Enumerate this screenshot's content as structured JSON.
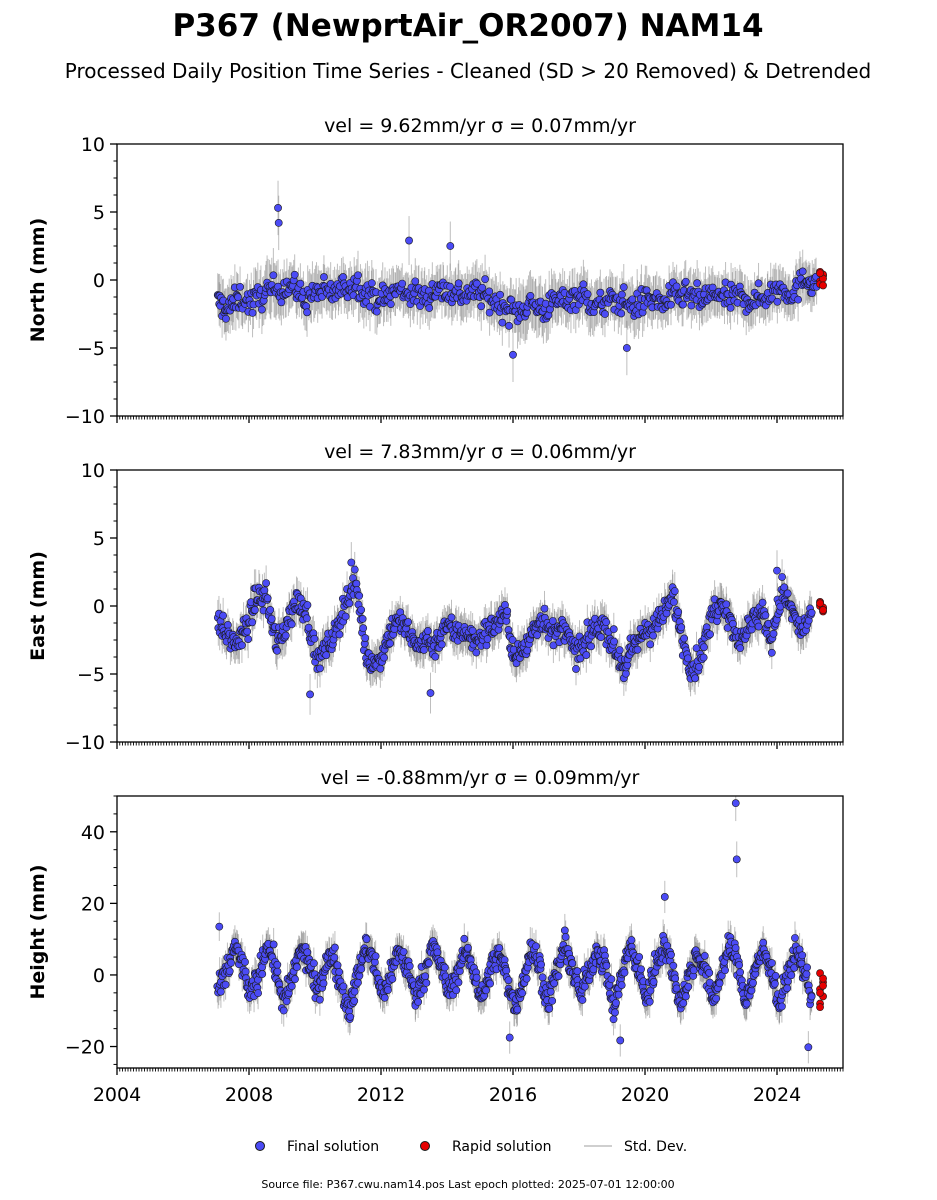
{
  "figure": {
    "title": "P367 (NewprtAir_OR2007) NAM14",
    "subtitle": "Processed Daily Position Time Series - Cleaned (SD > 20 Removed) & Detrended",
    "footer": "Source file: P367.cwu.nam14.pos  Last epoch plotted: 2025-07-01 12:00:00"
  },
  "legend": {
    "final_label": "Final solution",
    "rapid_label": "Rapid solution",
    "std_label": "Std. Dev."
  },
  "colors": {
    "final": "#4b4bf5",
    "rapid": "#e60000",
    "std": "#808080",
    "marker_edge": "#1a1a1a"
  },
  "chart_data": [
    {
      "type": "scatter",
      "title": "vel = 9.62mm/yr   σ = 0.07mm/yr",
      "ylabel": "North (mm)",
      "xlim": [
        2004.0,
        2026.0
      ],
      "ylim": [
        -10,
        10
      ],
      "yticks": [
        -10,
        -5,
        0,
        5,
        10
      ],
      "ytick_labels": [
        "−10",
        "−5",
        "0",
        "5",
        "10"
      ],
      "series": [
        {
          "name": "Final solution",
          "x": [
            2007.05,
            2007.35,
            2007.7,
            2008.1,
            2008.5,
            2008.9,
            2009.3,
            2009.7,
            2010.1,
            2010.5,
            2010.9,
            2011.3,
            2011.7,
            2012.1,
            2012.5,
            2012.9,
            2013.3,
            2013.7,
            2014.1,
            2014.5,
            2014.9,
            2015.3,
            2015.7,
            2016.1,
            2016.5,
            2016.9,
            2017.3,
            2017.7,
            2018.1,
            2018.5,
            2018.9,
            2019.3,
            2019.7,
            2020.1,
            2020.5,
            2020.9,
            2021.3,
            2021.7,
            2022.1,
            2022.5,
            2022.9,
            2023.3,
            2023.7,
            2024.1,
            2024.5,
            2024.9,
            2025.2
          ],
          "y": [
            -1.6,
            -2.2,
            -1.3,
            -1.7,
            -0.9,
            -0.6,
            -0.4,
            -1.5,
            -0.8,
            -1.0,
            -0.5,
            -0.3,
            -1.2,
            -1.4,
            -0.7,
            -1.0,
            -1.3,
            -0.6,
            -0.9,
            -1.1,
            -0.8,
            -1.4,
            -2.0,
            -2.4,
            -1.7,
            -2.2,
            -1.6,
            -1.3,
            -1.1,
            -2.0,
            -1.6,
            -1.5,
            -2.0,
            -1.3,
            -1.7,
            -1.2,
            -1.1,
            -1.5,
            -1.0,
            -1.4,
            -1.2,
            -1.6,
            -1.1,
            -0.6,
            -1.0,
            0.2,
            -0.5
          ],
          "std": [
            1.6,
            1.7,
            1.5,
            1.8,
            2.0,
            1.7,
            1.5,
            1.8,
            1.6,
            1.5,
            1.6,
            1.8,
            1.7,
            1.6,
            1.5,
            1.7,
            1.6,
            1.5,
            1.7,
            1.6,
            1.8,
            1.7,
            1.6,
            2.0,
            1.9,
            1.8,
            1.6,
            1.7,
            1.8,
            1.7,
            1.6,
            1.7,
            1.8,
            1.6,
            1.5,
            1.6,
            1.7,
            1.6,
            1.5,
            1.6,
            1.7,
            1.5,
            1.6,
            1.5,
            1.6,
            1.4,
            1.3
          ]
        },
        {
          "name": "Final solution",
          "x": [
            2008.88,
            2008.9,
            2012.85,
            2014.1,
            2016.0,
            2019.45
          ],
          "y": [
            5.3,
            4.2,
            2.9,
            2.5,
            -5.5,
            -5.0
          ],
          "std": [
            2.0,
            2.0,
            1.8,
            1.8,
            2.0,
            2.0
          ]
        },
        {
          "name": "Rapid solution",
          "x": [
            2025.25,
            2025.28,
            2025.3,
            2025.32,
            2025.34,
            2025.36,
            2025.38,
            2025.4
          ],
          "y": [
            0.6,
            0.3,
            -0.1,
            0.4,
            -0.3,
            0.1,
            0.5,
            -0.4
          ]
        }
      ]
    },
    {
      "type": "scatter",
      "title": "vel = 7.83mm/yr   σ = 0.06mm/yr",
      "ylabel": "East (mm)",
      "xlim": [
        2004.0,
        2026.0
      ],
      "ylim": [
        -10,
        10
      ],
      "yticks": [
        -10,
        -5,
        0,
        5,
        10
      ],
      "ytick_labels": [
        "−10",
        "−5",
        "0",
        "5",
        "10"
      ],
      "series": [
        {
          "name": "Final solution",
          "x": [
            2007.05,
            2007.35,
            2007.65,
            2007.95,
            2008.25,
            2008.55,
            2008.85,
            2009.15,
            2009.45,
            2009.75,
            2010.05,
            2010.35,
            2010.65,
            2010.95,
            2011.25,
            2011.55,
            2011.85,
            2012.15,
            2012.45,
            2012.75,
            2013.05,
            2013.35,
            2013.65,
            2013.95,
            2014.25,
            2014.55,
            2014.85,
            2015.15,
            2015.45,
            2015.75,
            2016.05,
            2016.35,
            2016.65,
            2016.95,
            2017.25,
            2017.55,
            2017.85,
            2018.15,
            2018.45,
            2018.75,
            2019.05,
            2019.35,
            2019.65,
            2019.95,
            2020.25,
            2020.55,
            2020.85,
            2021.15,
            2021.45,
            2021.75,
            2022.05,
            2022.35,
            2022.65,
            2022.95,
            2023.25,
            2023.55,
            2023.85,
            2024.15,
            2024.45,
            2024.75,
            2025.05
          ],
          "y": [
            -1.0,
            -2.3,
            -2.8,
            -1.5,
            0.8,
            0.5,
            -3.0,
            -1.2,
            0.3,
            -0.5,
            -4.0,
            -3.2,
            -1.8,
            0.5,
            1.8,
            -3.6,
            -4.4,
            -2.7,
            -1.0,
            -1.6,
            -3.0,
            -2.4,
            -2.9,
            -1.3,
            -2.0,
            -1.7,
            -2.8,
            -2.0,
            -1.4,
            -0.5,
            -3.8,
            -3.3,
            -1.5,
            -0.8,
            -2.3,
            -1.5,
            -3.5,
            -3.0,
            -1.8,
            -1.2,
            -3.0,
            -4.5,
            -3.2,
            -2.0,
            -1.5,
            -0.8,
            0.8,
            -2.5,
            -4.8,
            -3.2,
            -0.5,
            0.5,
            -1.5,
            -2.8,
            -0.8,
            -0.5,
            -2.6,
            1.2,
            -0.4,
            -2.0,
            -0.5
          ],
          "std": [
            1.3,
            1.2,
            1.3,
            1.4,
            1.3,
            1.2,
            1.4,
            1.3,
            1.2,
            1.3,
            1.4,
            1.3,
            1.2,
            1.3,
            1.4,
            1.3,
            1.4,
            1.3,
            1.2,
            1.3,
            1.4,
            1.3,
            1.2,
            1.3,
            1.4,
            1.3,
            1.2,
            1.3,
            1.4,
            1.3,
            1.4,
            1.3,
            1.2,
            1.3,
            1.4,
            1.3,
            1.2,
            1.3,
            1.4,
            1.3,
            1.2,
            1.3,
            1.4,
            1.3,
            1.2,
            1.3,
            1.4,
            1.3,
            1.2,
            1.3,
            1.4,
            1.3,
            1.2,
            1.3,
            1.4,
            1.3,
            1.2,
            1.3,
            1.4,
            1.3,
            1.2
          ]
        },
        {
          "name": "Final solution",
          "x": [
            2009.85,
            2011.1,
            2013.5,
            2024.0
          ],
          "y": [
            -6.5,
            3.2,
            -6.4,
            2.6
          ],
          "std": [
            1.5,
            1.5,
            1.5,
            1.5
          ]
        },
        {
          "name": "Rapid solution",
          "x": [
            2025.25,
            2025.28,
            2025.3,
            2025.32,
            2025.34,
            2025.36,
            2025.38,
            2025.4
          ],
          "y": [
            0.1,
            -0.2,
            0.3,
            -0.4,
            0.0,
            -0.1,
            0.2,
            -0.3
          ]
        }
      ]
    },
    {
      "type": "scatter",
      "title": "vel = -0.88mm/yr   σ = 0.09mm/yr",
      "ylabel": "Height (mm)",
      "xlim": [
        2004.0,
        2026.0
      ],
      "ylim": [
        -26,
        50
      ],
      "yticks": [
        -20,
        0,
        20,
        40
      ],
      "ytick_labels": [
        "−20",
        "0",
        "20",
        "40"
      ],
      "xticks": [
        2004,
        2008,
        2012,
        2016,
        2020,
        2024
      ],
      "xtick_labels": [
        "2004",
        "2008",
        "2012",
        "2016",
        "2020",
        "2024"
      ],
      "series": [
        {
          "name": "Final solution",
          "x": [
            2007.05,
            2007.3,
            2007.55,
            2007.8,
            2008.05,
            2008.3,
            2008.55,
            2008.8,
            2009.05,
            2009.3,
            2009.55,
            2009.8,
            2010.05,
            2010.3,
            2010.55,
            2010.8,
            2011.05,
            2011.3,
            2011.55,
            2011.8,
            2012.05,
            2012.3,
            2012.55,
            2012.8,
            2013.05,
            2013.3,
            2013.55,
            2013.8,
            2014.05,
            2014.3,
            2014.55,
            2014.8,
            2015.05,
            2015.3,
            2015.55,
            2015.8,
            2016.05,
            2016.3,
            2016.55,
            2016.8,
            2017.05,
            2017.3,
            2017.55,
            2017.8,
            2018.05,
            2018.3,
            2018.55,
            2018.8,
            2019.05,
            2019.3,
            2019.55,
            2019.8,
            2020.05,
            2020.3,
            2020.55,
            2020.8,
            2021.05,
            2021.3,
            2021.55,
            2021.8,
            2022.05,
            2022.3,
            2022.55,
            2022.8,
            2023.05,
            2023.3,
            2023.55,
            2023.8,
            2024.05,
            2024.3,
            2024.55,
            2024.8,
            2025.05
          ],
          "y": [
            -5,
            0,
            8,
            3,
            -6,
            0,
            9,
            2,
            -8,
            -2,
            7,
            4,
            -5,
            2,
            6,
            -3,
            -10,
            0,
            8,
            3,
            -6,
            1,
            7,
            2,
            -6,
            0,
            8,
            3,
            -5,
            0,
            7,
            2,
            -7,
            1,
            6,
            0,
            -9,
            -2,
            7,
            3,
            -8,
            0,
            8,
            2,
            -6,
            1,
            7,
            3,
            -10,
            0,
            8,
            2,
            -7,
            2,
            9,
            3,
            -8,
            -2,
            6,
            2,
            -7,
            0,
            8,
            4,
            -8,
            0,
            7,
            3,
            -9,
            -1,
            7,
            2,
            -6
          ],
          "std": [
            4.5,
            4.2,
            4.6,
            4.4,
            4.5,
            4.3,
            4.6,
            4.4,
            4.5,
            4.3,
            4.6,
            4.4,
            4.5,
            4.3,
            4.6,
            4.4,
            4.5,
            4.3,
            4.6,
            4.4,
            4.5,
            4.3,
            4.6,
            4.4,
            4.5,
            4.3,
            4.6,
            4.4,
            4.5,
            4.3,
            4.6,
            4.4,
            4.5,
            4.3,
            4.6,
            4.4,
            4.5,
            4.3,
            4.6,
            4.4,
            4.5,
            4.3,
            4.6,
            4.4,
            4.5,
            4.3,
            4.6,
            4.4,
            4.5,
            4.3,
            4.6,
            4.4,
            4.5,
            4.3,
            4.6,
            4.4,
            4.5,
            4.3,
            4.6,
            4.4,
            4.5,
            4.3,
            4.6,
            4.4,
            4.5,
            4.3,
            4.6,
            4.4,
            4.5,
            4.3,
            4.6,
            4.4,
            4.5
          ]
        },
        {
          "name": "Final solution",
          "x": [
            2022.75,
            2022.78,
            2007.1,
            2015.9,
            2019.25,
            2024.95,
            2020.6
          ],
          "y": [
            48,
            32.3,
            13.5,
            -17.5,
            -18.3,
            -20.2,
            21.8
          ],
          "std": [
            5.0,
            5.0,
            4.0,
            4.5,
            4.5,
            4.5,
            4.5
          ]
        },
        {
          "name": "Rapid solution",
          "x": [
            2025.25,
            2025.27,
            2025.29,
            2025.31,
            2025.33,
            2025.35,
            2025.37,
            2025.39,
            2025.41
          ],
          "y": [
            0.5,
            -2.0,
            -4.0,
            -6.0,
            -8.0,
            -3.0,
            -9.0,
            -1.0,
            -5.0
          ]
        }
      ]
    }
  ]
}
